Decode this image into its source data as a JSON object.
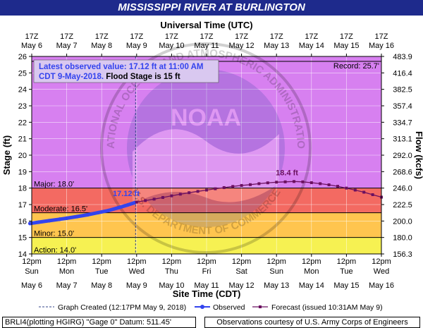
{
  "title": "MISSISSIPPI RIVER AT BURLINGTON",
  "chart_data": {
    "type": "line",
    "top_axis_title": "Universal Time (UTC)",
    "bottom_axis_title": "Site Time (CDT)",
    "y_left_label": "Stage (ft)",
    "y_right_label": "Flow (kcfs)",
    "ylim": [
      14,
      26
    ],
    "y_ticks": [
      14,
      15,
      16,
      17,
      18,
      19,
      20,
      21,
      22,
      23,
      24,
      25,
      26
    ],
    "flow_ticks": [
      {
        "stage": 14,
        "label": "156.3"
      },
      {
        "stage": 15,
        "label": "180.0"
      },
      {
        "stage": 16,
        "label": "200.0"
      },
      {
        "stage": 17,
        "label": "222.5"
      },
      {
        "stage": 18,
        "label": "246.0"
      },
      {
        "stage": 19,
        "label": "268.6"
      },
      {
        "stage": 20,
        "label": "292.0"
      },
      {
        "stage": 21,
        "label": "313.1"
      },
      {
        "stage": 22,
        "label": "334.7"
      },
      {
        "stage": 23,
        "label": "357.4"
      },
      {
        "stage": 24,
        "label": "382.5"
      },
      {
        "stage": 25,
        "label": "416.4"
      },
      {
        "stage": 26,
        "label": "483.9"
      }
    ],
    "xlim_days": [
      0,
      10
    ],
    "top_ticks": [
      {
        "line1": "17Z",
        "line2": "May 6"
      },
      {
        "line1": "17Z",
        "line2": "May 7"
      },
      {
        "line1": "17Z",
        "line2": "May 8"
      },
      {
        "line1": "17Z",
        "line2": "May 9"
      },
      {
        "line1": "17Z",
        "line2": "May 10"
      },
      {
        "line1": "17Z",
        "line2": "May 11"
      },
      {
        "line1": "17Z",
        "line2": "May 12"
      },
      {
        "line1": "17Z",
        "line2": "May 13"
      },
      {
        "line1": "17Z",
        "line2": "May 14"
      },
      {
        "line1": "17Z",
        "line2": "May 15"
      },
      {
        "line1": "17Z",
        "line2": "May 16"
      }
    ],
    "bottom_ticks": [
      {
        "time": "12pm",
        "day": "Sun",
        "date": "May 6"
      },
      {
        "time": "12pm",
        "day": "Mon",
        "date": "May 7"
      },
      {
        "time": "12pm",
        "day": "Tue",
        "date": "May 8"
      },
      {
        "time": "12pm",
        "day": "Wed",
        "date": "May 9"
      },
      {
        "time": "12pm",
        "day": "Thu",
        "date": "May 10"
      },
      {
        "time": "12pm",
        "day": "Fri",
        "date": "May 11"
      },
      {
        "time": "12pm",
        "day": "Sat",
        "date": "May 12"
      },
      {
        "time": "12pm",
        "day": "Sun",
        "date": "May 13"
      },
      {
        "time": "12pm",
        "day": "Mon",
        "date": "May 14"
      },
      {
        "time": "12pm",
        "day": "Tue",
        "date": "May 15"
      },
      {
        "time": "12pm",
        "day": "Wed",
        "date": "May 16"
      }
    ],
    "bands": [
      {
        "name": "Action",
        "from": 14,
        "to": 15,
        "color": "#f6f152"
      },
      {
        "name": "Minor",
        "from": 15,
        "to": 16.5,
        "color": "#ffc54f"
      },
      {
        "name": "Moderate",
        "from": 16.5,
        "to": 18,
        "color": "#f36a62"
      },
      {
        "name": "Major",
        "from": 18,
        "to": 26,
        "color": "#d780f0"
      }
    ],
    "threshold_labels": [
      {
        "stage": 14.0,
        "text": "Action: 14.0'"
      },
      {
        "stage": 15.0,
        "text": "Minor: 15.0'"
      },
      {
        "stage": 16.5,
        "text": "Moderate: 16.5'"
      },
      {
        "stage": 18.0,
        "text": "Major: 18.0'"
      }
    ],
    "record": {
      "stage": 25.7,
      "text": "Record: 25.7'"
    },
    "graph_created_day": 2.97,
    "series": [
      {
        "name": "Observed",
        "color": "#3344ee",
        "points": [
          {
            "x": -0.05,
            "y": 15.85
          },
          {
            "x": 0.2,
            "y": 15.93
          },
          {
            "x": 0.5,
            "y": 16.02
          },
          {
            "x": 0.8,
            "y": 16.11
          },
          {
            "x": 1.0,
            "y": 16.17
          },
          {
            "x": 1.3,
            "y": 16.27
          },
          {
            "x": 1.6,
            "y": 16.38
          },
          {
            "x": 1.9,
            "y": 16.51
          },
          {
            "x": 2.2,
            "y": 16.64
          },
          {
            "x": 2.5,
            "y": 16.82
          },
          {
            "x": 2.75,
            "y": 16.98
          },
          {
            "x": 2.95,
            "y": 17.12
          }
        ]
      },
      {
        "name": "Forecast",
        "color": "#6b1060",
        "points": [
          {
            "x": 3.0,
            "y": 17.15
          },
          {
            "x": 3.25,
            "y": 17.24
          },
          {
            "x": 3.5,
            "y": 17.33
          },
          {
            "x": 3.75,
            "y": 17.43
          },
          {
            "x": 4.0,
            "y": 17.53
          },
          {
            "x": 4.25,
            "y": 17.63
          },
          {
            "x": 4.5,
            "y": 17.72
          },
          {
            "x": 4.75,
            "y": 17.8
          },
          {
            "x": 5.0,
            "y": 17.88
          },
          {
            "x": 5.25,
            "y": 17.96
          },
          {
            "x": 5.5,
            "y": 18.03
          },
          {
            "x": 5.75,
            "y": 18.1
          },
          {
            "x": 6.0,
            "y": 18.16
          },
          {
            "x": 6.25,
            "y": 18.21
          },
          {
            "x": 6.5,
            "y": 18.27
          },
          {
            "x": 6.75,
            "y": 18.32
          },
          {
            "x": 7.0,
            "y": 18.36
          },
          {
            "x": 7.25,
            "y": 18.38
          },
          {
            "x": 7.5,
            "y": 18.4
          },
          {
            "x": 7.75,
            "y": 18.38
          },
          {
            "x": 8.0,
            "y": 18.33
          },
          {
            "x": 8.25,
            "y": 18.27
          },
          {
            "x": 8.5,
            "y": 18.2
          },
          {
            "x": 8.75,
            "y": 18.11
          },
          {
            "x": 9.0,
            "y": 18.0
          },
          {
            "x": 9.25,
            "y": 17.88
          },
          {
            "x": 9.5,
            "y": 17.75
          },
          {
            "x": 9.75,
            "y": 17.6
          },
          {
            "x": 10.0,
            "y": 17.45
          }
        ]
      }
    ],
    "point_labels": [
      {
        "x": 2.7,
        "y": 17.12,
        "text": "17.12 ft",
        "color": "#3344ee"
      },
      {
        "x": 7.3,
        "y": 18.4,
        "text": "18.4 ft",
        "color": "#6b1060"
      }
    ],
    "info_box": {
      "line1": "Latest observed value: 17.12 ft at 11:00 AM",
      "line2a": "CDT 9-May-2018.",
      "line2b": " Flood Stage is 15 ft"
    },
    "legend": {
      "graph_created": "Graph Created (12:17PM May 9, 2018)",
      "observed": "Observed",
      "forecast": "Forecast (issued 10:31AM May 9)"
    }
  },
  "footer": {
    "left": "BRLI4(plotting HGIRG) \"Gage 0\" Datum: 511.45'",
    "right": "Observations courtesy of U.S. Army Corps of Engineers"
  },
  "watermark": {
    "text": "NOAA",
    "ring_top": "NATIONAL OCEANIC AND ATMOSPHERIC ADMINISTRATION",
    "ring_bottom": "U.S. DEPARTMENT OF COMMERCE"
  }
}
